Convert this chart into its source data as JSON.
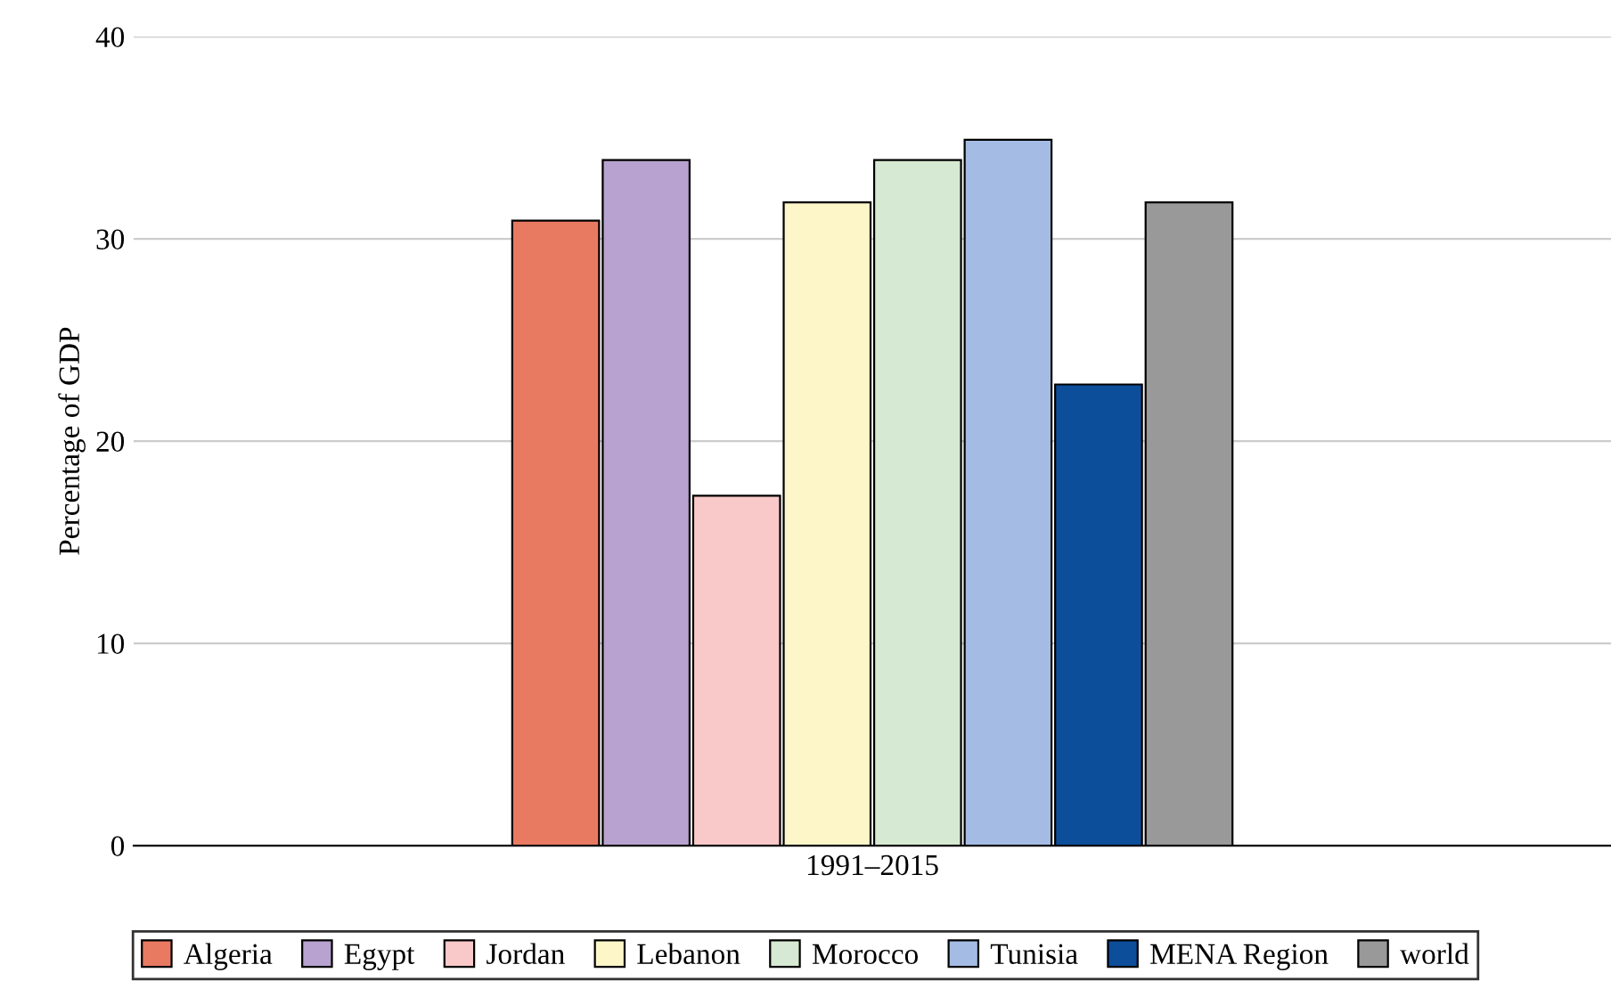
{
  "chart_data": {
    "type": "bar",
    "ylabel": "Percentage of GDP",
    "categories": [
      "1991–2015"
    ],
    "series": [
      {
        "name": "Algeria",
        "color": "#e97a62",
        "values": [
          30.9
        ]
      },
      {
        "name": "Egypt",
        "color": "#b8a2cf",
        "values": [
          33.9
        ]
      },
      {
        "name": "Jordan",
        "color": "#f9c8c8",
        "values": [
          17.3
        ]
      },
      {
        "name": "Lebanon",
        "color": "#fcf6c9",
        "values": [
          31.8
        ]
      },
      {
        "name": "Morocco",
        "color": "#d6e9d2",
        "values": [
          33.9
        ]
      },
      {
        "name": "Tunisia",
        "color": "#a4bce3",
        "values": [
          34.9
        ]
      },
      {
        "name": "MENA Region",
        "color": "#0c4e9a",
        "values": [
          22.8
        ]
      },
      {
        "name": "world",
        "color": "#999999",
        "values": [
          31.8
        ]
      }
    ],
    "ylim": [
      0,
      40
    ],
    "yticks": [
      0,
      10,
      20,
      30,
      40
    ],
    "grid": "y",
    "legend": "bottom"
  }
}
